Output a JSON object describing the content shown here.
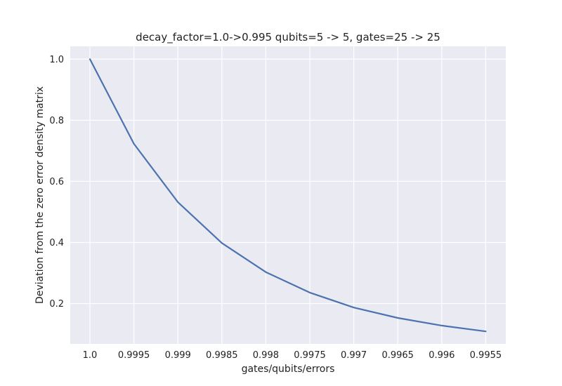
{
  "chart_data": {
    "type": "line",
    "title": "decay_factor=1.0->0.995 qubits=5 -> 5, gates=25 -> 25",
    "xlabel": "gates/qubits/errors",
    "ylabel": "Deviation from the zero error density matrix",
    "categories": [
      "1.0",
      "0.9995",
      "0.999",
      "0.9985",
      "0.998",
      "0.9975",
      "0.997",
      "0.9965",
      "0.996",
      "0.9955"
    ],
    "series": [
      {
        "values": [
          1.0,
          0.723,
          0.532,
          0.398,
          0.303,
          0.236,
          0.187,
          0.153,
          0.128,
          0.109
        ]
      }
    ],
    "y_ticks": [
      0.2,
      0.4,
      0.6,
      0.8,
      1.0
    ],
    "y_tick_labels": [
      "0.2",
      "0.4",
      "0.6",
      "0.8",
      "1.0"
    ],
    "ylim": [
      0.068,
      1.042
    ],
    "grid": true,
    "colors": {
      "line": "#4c72b0",
      "plot_background": "#eaeaf2",
      "grid": "#ffffff"
    }
  }
}
